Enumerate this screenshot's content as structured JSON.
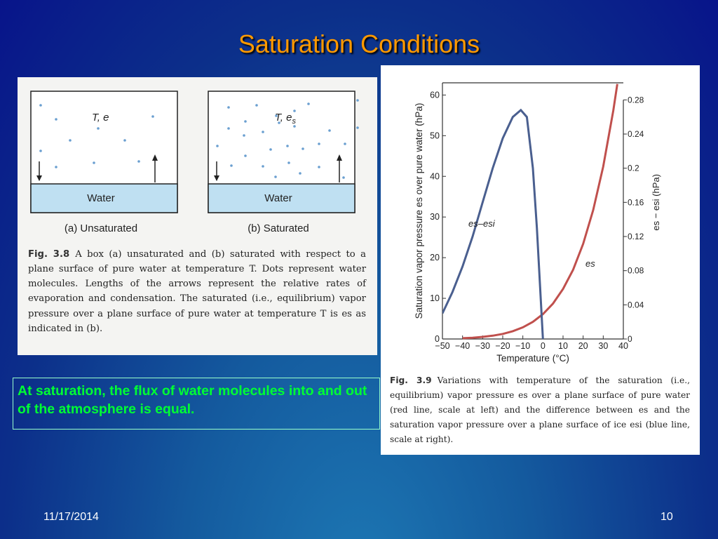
{
  "title": "Saturation Conditions",
  "figure_left": {
    "panels": [
      {
        "label": "T, e",
        "label_sub": "",
        "water": "Water",
        "caption": "(a) Unsaturated"
      },
      {
        "label": "T, e",
        "label_sub": "s",
        "water": "Water",
        "caption": "(b) Saturated"
      }
    ],
    "fig_number": "Fig. 3.8",
    "caption": "A box (a) unsaturated and (b) saturated with respect to a plane surface of pure water at temperature T. Dots represent water molecules. Lengths of the arrows represent the relative rates of evaporation and condensation. The saturated (i.e., equilibrium) vapor pressure over a plane surface of pure water at temperature T is es as indicated in (b)."
  },
  "chart_data": {
    "type": "line",
    "xlabel": "Temperature (°C)",
    "ylabel": "Saturation vapor pressure es over pure water (hPa)",
    "y2label": "es − esi (hPa)",
    "xlim": [
      -50,
      40
    ],
    "ylim": [
      0,
      63
    ],
    "y2lim": [
      0,
      0.3
    ],
    "xticks": [
      {
        "value": -50,
        "label": "−50"
      },
      {
        "value": -40,
        "label": "−40"
      },
      {
        "value": -30,
        "label": "−30"
      },
      {
        "value": -20,
        "label": "−20"
      },
      {
        "value": -10,
        "label": "−10"
      },
      0,
      10,
      20,
      30,
      40
    ],
    "yticks": [
      0,
      10,
      20,
      30,
      40,
      50,
      60
    ],
    "y2ticks": [
      0,
      0.04,
      0.08,
      0.12,
      0.16,
      0.2,
      0.24,
      0.28
    ],
    "series": [
      {
        "name": "es",
        "color": "#c0504d",
        "x": [
          -40,
          -35,
          -30,
          -25,
          -20,
          -15,
          -10,
          -5,
          0,
          5,
          10,
          15,
          20,
          25,
          30,
          35,
          37
        ],
        "values": [
          0.19,
          0.31,
          0.51,
          0.81,
          1.25,
          1.91,
          2.86,
          4.22,
          6.11,
          8.72,
          12.3,
          17.0,
          23.4,
          31.7,
          42.4,
          56.2,
          62.7
        ]
      },
      {
        "name": "es–esi",
        "color": "#4a5f8f",
        "axis": "y2",
        "x": [
          -50,
          -45,
          -40,
          -35,
          -30,
          -25,
          -20,
          -15,
          -11,
          -8,
          -5,
          -3,
          0
        ],
        "values": [
          0.03,
          0.055,
          0.085,
          0.12,
          0.16,
          0.2,
          0.235,
          0.26,
          0.268,
          0.26,
          0.2,
          0.13,
          0
        ]
      }
    ],
    "fig_number": "Fig. 3.9",
    "caption": "Variations with temperature of the saturation (i.e., equilibrium) vapor pressure es over a plane surface of pure water (red line, scale at left) and the difference between es and the saturation vapor pressure over a plane surface of ice esi (blue line, scale at right)."
  },
  "callout": "At saturation, the flux of water molecules into and out of the atmosphere is equal.",
  "footer": {
    "date": "11/17/2014",
    "page": "10"
  }
}
